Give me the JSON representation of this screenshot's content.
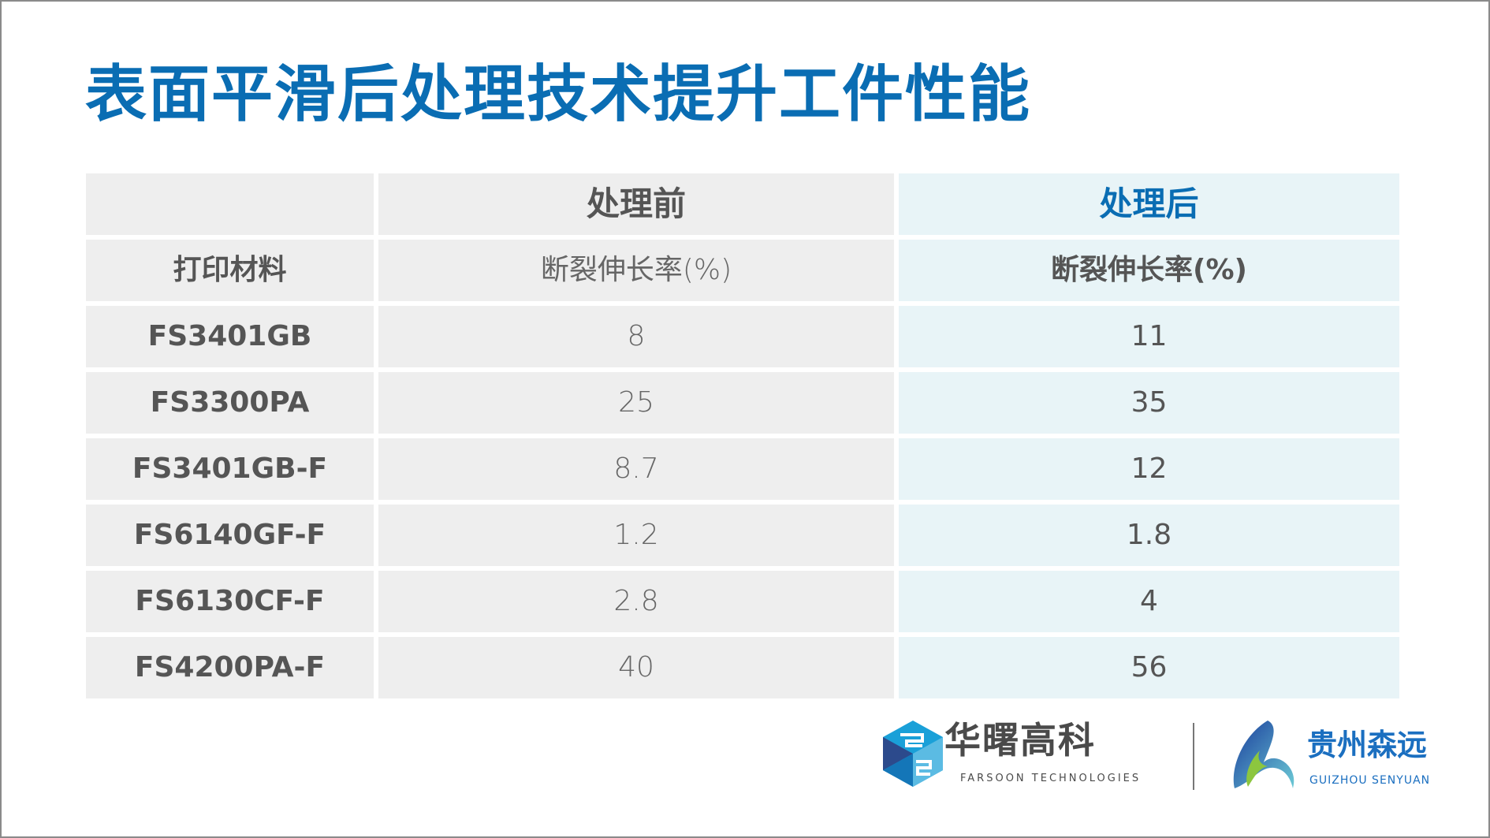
{
  "title": "表面平滑后处理技术提升工件性能",
  "table": {
    "header": {
      "blank": "",
      "before": "处理前",
      "after": "处理后"
    },
    "subheader": {
      "material": "打印材料",
      "before": "断裂伸长率(%)",
      "after": "断裂伸长率(%)"
    },
    "rows": [
      {
        "material": "FS3401GB",
        "before": "8",
        "after": "11"
      },
      {
        "material": "FS3300PA",
        "before": "25",
        "after": "35"
      },
      {
        "material": "FS3401GB-F",
        "before": "8.7",
        "after": "12"
      },
      {
        "material": "FS6140GF-F",
        "before": "1.2",
        "after": "1.8"
      },
      {
        "material": "FS6130CF-F",
        "before": "2.8",
        "after": "4"
      },
      {
        "material": "FS4200PA-F",
        "before": "40",
        "after": "56"
      }
    ]
  },
  "logos": {
    "farsoon_cn": "华曙高科",
    "farsoon_en": "FARSOON TECHNOLOGIES",
    "guizhou_cn": "贵州森远",
    "guizhou_en": "GUIZHOU SENYUAN"
  },
  "colors": {
    "accent": "#0a6db3",
    "before_bg": "#eeeeee",
    "after_bg": "#e8f4f7"
  }
}
